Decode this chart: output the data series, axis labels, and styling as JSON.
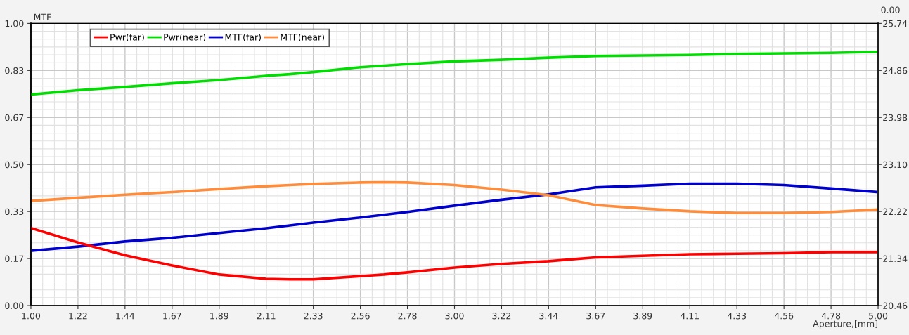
{
  "chart_data": {
    "type": "line",
    "ylabel": "MTF",
    "xlabel": "Aperture,[mm]",
    "y2label": "0.00",
    "x": [
      1.0,
      1.2222,
      1.4444,
      1.6667,
      1.8889,
      2.1111,
      2.2222,
      2.3333,
      2.5556,
      2.6667,
      2.7778,
      3.0,
      3.2222,
      3.4444,
      3.6667,
      3.8889,
      4.1111,
      4.3333,
      4.5556,
      4.7778,
      5.0
    ],
    "series": [
      {
        "name": "Pwr(far)",
        "color": "#ff0000",
        "axis": "y2",
        "values": [
          21.91,
          21.64,
          21.4,
          21.21,
          21.04,
          20.96,
          20.95,
          20.95,
          21.01,
          21.04,
          21.08,
          21.17,
          21.24,
          21.29,
          21.36,
          21.39,
          21.42,
          21.43,
          21.44,
          21.46,
          21.46
        ]
      },
      {
        "name": "Pwr(near)",
        "color": "#00dd00",
        "axis": "y2",
        "values": [
          24.41,
          24.49,
          24.55,
          24.62,
          24.68,
          24.76,
          24.79,
          24.83,
          24.92,
          24.95,
          24.98,
          25.03,
          25.06,
          25.1,
          25.13,
          25.14,
          25.15,
          25.17,
          25.18,
          25.19,
          25.21
        ]
      },
      {
        "name": "MTF(far)",
        "color": "#0000cc",
        "values": [
          0.194,
          0.209,
          0.227,
          0.24,
          0.257,
          0.274,
          0.284,
          0.294,
          0.312,
          0.322,
          0.332,
          0.354,
          0.375,
          0.394,
          0.419,
          0.425,
          0.432,
          0.432,
          0.427,
          0.415,
          0.402
        ]
      },
      {
        "name": "MTF(near)",
        "color": "#ff8c3a",
        "values": [
          0.371,
          0.382,
          0.393,
          0.402,
          0.413,
          0.423,
          0.427,
          0.431,
          0.436,
          0.437,
          0.436,
          0.427,
          0.411,
          0.391,
          0.356,
          0.344,
          0.334,
          0.328,
          0.328,
          0.332,
          0.34
        ]
      }
    ],
    "xlim": [
      1.0,
      5.0
    ],
    "xticks": [
      {
        "value": 1.0,
        "label": "1.00"
      },
      {
        "value": 1.2222,
        "label": "1.22"
      },
      {
        "value": 1.4444,
        "label": "1.44"
      },
      {
        "value": 1.6667,
        "label": "1.67"
      },
      {
        "value": 1.8889,
        "label": "1.89"
      },
      {
        "value": 2.1111,
        "label": "2.11"
      },
      {
        "value": 2.3333,
        "label": "2.33"
      },
      {
        "value": 2.5556,
        "label": "2.56"
      },
      {
        "value": 2.7778,
        "label": "2.78"
      },
      {
        "value": 3.0,
        "label": "3.00"
      },
      {
        "value": 3.2222,
        "label": "3.22"
      },
      {
        "value": 3.4444,
        "label": "3.44"
      },
      {
        "value": 3.6667,
        "label": "3.67"
      },
      {
        "value": 3.8889,
        "label": "3.89"
      },
      {
        "value": 4.1111,
        "label": "4.11"
      },
      {
        "value": 4.3333,
        "label": "4.33"
      },
      {
        "value": 4.5556,
        "label": "4.56"
      },
      {
        "value": 4.7778,
        "label": "4.78"
      },
      {
        "value": 5.0,
        "label": "5.00"
      }
    ],
    "ylim": [
      0,
      1
    ],
    "yticks": [
      {
        "value": 0,
        "label": "0.00"
      },
      {
        "value": 0.1667,
        "label": "0.17"
      },
      {
        "value": 0.3333,
        "label": "0.33"
      },
      {
        "value": 0.5,
        "label": "0.50"
      },
      {
        "value": 0.6667,
        "label": "0.67"
      },
      {
        "value": 0.8333,
        "label": "0.83"
      },
      {
        "value": 1,
        "label": "1.00"
      }
    ],
    "y2lim": [
      20.46,
      25.74
    ],
    "y2ticks": [
      20.46,
      21.34,
      22.22,
      {
        "value": 23.1,
        "label": "23.10"
      },
      23.98,
      24.86,
      25.74
    ],
    "grid": true,
    "legend": "top left",
    "marker": "none",
    "line_style": "solid"
  }
}
